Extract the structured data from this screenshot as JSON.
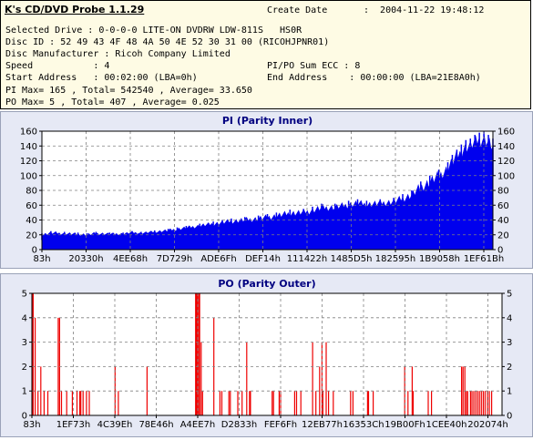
{
  "info": {
    "title": "K's CD/DVD Probe 1.1.29",
    "create_date_label": "Create Date",
    "create_date": ":  2004-11-22 19:48:12",
    "lines": [
      "Selected Drive : 0-0-0-0 LITE-ON DVDRW LDW-811S   HS0R",
      "Disc ID : 52 49 43 4F 48 4A 50 4E 52 30 31 00 (RICOHJPNR01)",
      "Disc Manufacturer : Ricoh Company Limited",
      "Speed           : 4",
      "Start Address   : 00:02:00 (LBA=0h)",
      "PI Max= 165 , Total= 542540 , Average= 33.650",
      "PO Max= 5 , Total= 407 , Average= 0.025"
    ],
    "right_lines": [
      "PI/PO Sum ECC : 8",
      "End Address    : 00:00:00 (LBA=21E8A0h)"
    ]
  },
  "colors": {
    "panel_bg": "#e6e9f5",
    "plot_bg": "#ffffff",
    "pi_color": "#0000ee",
    "po_color": "#ee0000",
    "title_color": "#000080",
    "grid": "#808080"
  },
  "chart_data": [
    {
      "type": "area",
      "title": "PI (Parity Inner)",
      "xlabel": "",
      "ylabel": "",
      "ylim": [
        0,
        160
      ],
      "yticks": [
        0,
        20,
        40,
        60,
        80,
        100,
        120,
        140,
        160
      ],
      "xlim": [
        0,
        100
      ],
      "xtick_labels": [
        "83h",
        "20330h",
        "4EE68h",
        "7D729h",
        "ADE6Fh",
        "DEF14h",
        "111422h",
        "1485D5h",
        "182595h",
        "1B9058h",
        "1EF61Bh"
      ],
      "grid": true,
      "x": [
        0,
        2,
        5,
        8,
        10,
        12,
        15,
        18,
        20,
        22,
        25,
        28,
        30,
        32,
        35,
        38,
        40,
        42,
        45,
        48,
        50,
        52,
        55,
        58,
        60,
        62,
        65,
        68,
        70,
        72,
        75,
        78,
        80,
        82,
        84,
        86,
        88,
        90,
        91,
        92,
        93,
        94,
        95,
        96,
        97,
        98,
        99,
        100
      ],
      "peak": [
        22,
        25,
        24,
        23,
        22,
        24,
        23,
        23,
        25,
        24,
        26,
        28,
        30,
        32,
        35,
        38,
        40,
        42,
        44,
        46,
        48,
        50,
        54,
        55,
        58,
        62,
        62,
        66,
        68,
        66,
        68,
        70,
        75,
        80,
        92,
        100,
        108,
        118,
        128,
        135,
        142,
        148,
        150,
        155,
        158,
        160,
        155,
        150
      ],
      "base": [
        13,
        14,
        14,
        13,
        13,
        14,
        14,
        15,
        16,
        16,
        17,
        18,
        19,
        20,
        22,
        23,
        24,
        25,
        26,
        27,
        28,
        29,
        31,
        33,
        35,
        37,
        40,
        42,
        43,
        43,
        44,
        46,
        48,
        52,
        56,
        62,
        70,
        80,
        86,
        92,
        98,
        104,
        108,
        110,
        112,
        115,
        110,
        100
      ]
    },
    {
      "type": "bar",
      "title": "PO (Parity Outer)",
      "xlabel": "",
      "ylabel": "",
      "ylim": [
        0,
        5
      ],
      "yticks": [
        0,
        1,
        2,
        3,
        4,
        5
      ],
      "xlim": [
        0,
        100
      ],
      "xtick_labels": [
        "83h",
        "1EF73h",
        "4C39Eh",
        "78E46h",
        "A4EE7h",
        "D2833h",
        "FEF6Fh",
        "12EB77h",
        "16353Ch",
        "19B00Fh",
        "1CEE40h",
        "202074h"
      ],
      "grid": true,
      "x": [
        0.2,
        0.7,
        1.3,
        1.9,
        2.6,
        3.4,
        5.6,
        5.9,
        6.3,
        7.4,
        8.6,
        9.6,
        10.2,
        10.4,
        10.9,
        11.6,
        12.2,
        17.7,
        18.4,
        24.5,
        34.9,
        35.2,
        35.6,
        36.0,
        36.3,
        38.7,
        40.0,
        40.4,
        41.9,
        42.2,
        43.8,
        44.7,
        45.7,
        46.3,
        46.5,
        51.1,
        51.4,
        52.6,
        52.9,
        55.9,
        56.3,
        57.2,
        59.7,
        60.4,
        61.2,
        61.7,
        61.9,
        62.6,
        63.1,
        64.1,
        67.8,
        68.3,
        71.4,
        71.6,
        72.6,
        79.3,
        80.0,
        80.9,
        81.1,
        84.3,
        85.0,
        91.4,
        91.7,
        92.1,
        92.4,
        92.7,
        93.3,
        93.6,
        94.0,
        94.4,
        94.8,
        95.2,
        95.6,
        96.0,
        96.4,
        96.9,
        97.3,
        97.8
      ],
      "values": [
        5,
        4,
        1,
        2,
        1,
        1,
        4,
        4,
        1,
        1,
        1,
        1,
        1,
        1,
        1,
        1,
        1,
        2,
        1,
        2,
        5,
        5,
        5,
        3,
        1,
        4,
        1,
        1,
        1,
        1,
        1,
        1,
        3,
        1,
        1,
        1,
        1,
        1,
        1,
        1,
        1,
        1,
        3,
        1,
        2,
        3,
        1,
        3,
        1,
        1,
        1,
        1,
        1,
        1,
        1,
        2,
        1,
        2,
        1,
        1,
        1,
        2,
        2,
        2,
        1,
        1,
        1,
        1,
        1,
        1,
        1,
        1,
        1,
        1,
        1,
        1,
        1,
        1
      ]
    }
  ]
}
